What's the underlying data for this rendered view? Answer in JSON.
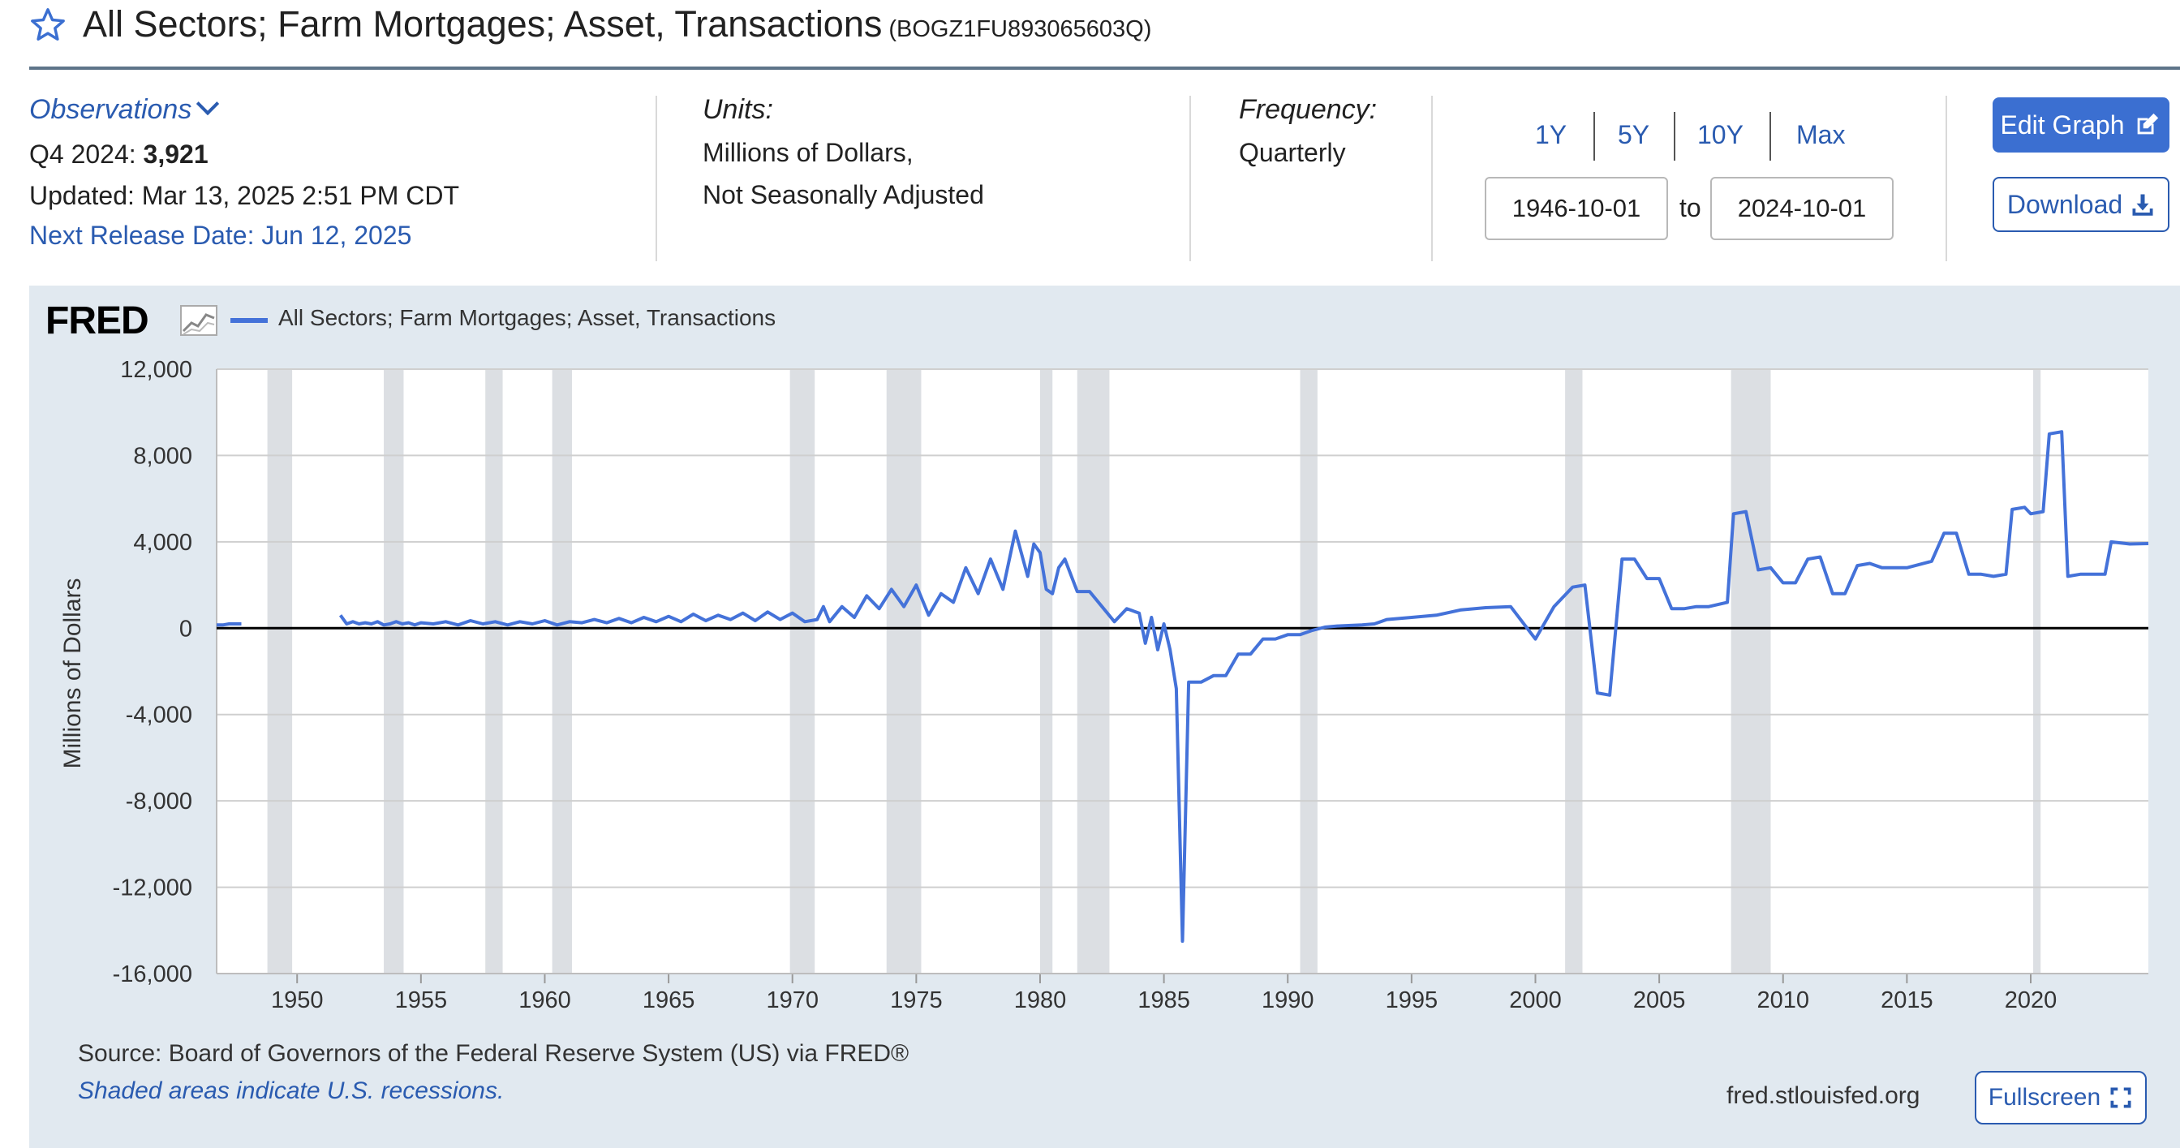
{
  "header": {
    "title": "All Sectors; Farm Mortgages; Asset, Transactions",
    "series_id": "(BOGZ1FU893065603Q)"
  },
  "info": {
    "observations_label": "Observations",
    "obs_period": "Q4 2024:",
    "obs_value": "3,921",
    "updated": "Updated: Mar 13, 2025 2:51 PM CDT",
    "next_release": "Next Release Date: Jun 12, 2025",
    "units_label": "Units:",
    "units_line1": "Millions of Dollars,",
    "units_line2": "Not Seasonally Adjusted",
    "frequency_label": "Frequency:",
    "frequency_value": "Quarterly"
  },
  "range": {
    "buttons": [
      "1Y",
      "5Y",
      "10Y",
      "Max"
    ],
    "start_date": "1946-10-01",
    "to_label": "to",
    "end_date": "2024-10-01"
  },
  "actions": {
    "edit_graph": "Edit Graph",
    "download": "Download"
  },
  "chart_meta": {
    "logo": "FRED",
    "source": "Source: Board of Governors of the Federal Reserve System (US) via FRED®",
    "recession_note": "Shaded areas indicate U.S. recessions.",
    "site": "fred.stlouisfed.org",
    "fullscreen": "Fullscreen"
  },
  "colors": {
    "series": "#4472d9",
    "recession": "#dcdfe3",
    "panel": "#e1e9f0",
    "accent": "#3b6fd1"
  },
  "icons": [
    "star-icon",
    "chevron-down-icon",
    "edit-icon",
    "download-icon",
    "fullscreen-icon",
    "fred-chart-icon"
  ],
  "chart_data": {
    "type": "line",
    "title": "",
    "xlabel": "",
    "ylabel": "Millions of Dollars",
    "xlim": [
      1946.75,
      2024.75
    ],
    "ylim": [
      -16000,
      12000
    ],
    "x_ticks": [
      1950,
      1955,
      1960,
      1965,
      1970,
      1975,
      1980,
      1985,
      1990,
      1995,
      2000,
      2005,
      2010,
      2015,
      2020
    ],
    "x_tick_labels": [
      "1950",
      "1955",
      "1960",
      "1965",
      "1970",
      "1975",
      "1980",
      "1985",
      "1990",
      "1995",
      "2000",
      "2005",
      "2010",
      "2015",
      "2020"
    ],
    "y_ticks": [
      -16000,
      -12000,
      -8000,
      -4000,
      0,
      4000,
      8000,
      12000
    ],
    "y_tick_labels": [
      "-16,000",
      "-12,000",
      "-8,000",
      "-4,000",
      "0",
      "4,000",
      "8,000",
      "12,000"
    ],
    "grid": true,
    "legend": "top-left",
    "recessions": [
      [
        1948.8,
        1949.8
      ],
      [
        1953.5,
        1954.3
      ],
      [
        1957.6,
        1958.3
      ],
      [
        1960.3,
        1961.1
      ],
      [
        1969.9,
        1970.9
      ],
      [
        1973.8,
        1975.2
      ],
      [
        1980.0,
        1980.5
      ],
      [
        1981.5,
        1982.8
      ],
      [
        1990.5,
        1991.2
      ],
      [
        2001.2,
        2001.9
      ],
      [
        2007.9,
        2009.5
      ],
      [
        2020.1,
        2020.4
      ]
    ],
    "series": [
      {
        "name": "All Sectors; Farm Mortgages; Asset, Transactions",
        "segments": [
          [
            [
              1946.75,
              150
            ],
            [
              1947.0,
              150
            ],
            [
              1947.25,
              200
            ],
            [
              1947.5,
              200
            ],
            [
              1947.75,
              200
            ]
          ],
          [
            [
              1951.75,
              600
            ],
            [
              1952.0,
              200
            ],
            [
              1952.25,
              300
            ],
            [
              1952.5,
              200
            ],
            [
              1952.75,
              250
            ],
            [
              1953.0,
              200
            ],
            [
              1953.25,
              300
            ],
            [
              1953.5,
              150
            ],
            [
              1953.75,
              200
            ],
            [
              1954.0,
              300
            ],
            [
              1954.25,
              200
            ],
            [
              1954.5,
              250
            ],
            [
              1954.75,
              150
            ],
            [
              1955.0,
              250
            ],
            [
              1955.5,
              200
            ],
            [
              1956.0,
              300
            ],
            [
              1956.5,
              150
            ],
            [
              1957.0,
              350
            ],
            [
              1957.5,
              200
            ],
            [
              1958.0,
              300
            ],
            [
              1958.5,
              150
            ],
            [
              1959.0,
              300
            ],
            [
              1959.5,
              200
            ],
            [
              1960.0,
              350
            ],
            [
              1960.5,
              150
            ],
            [
              1961.0,
              300
            ],
            [
              1961.5,
              250
            ],
            [
              1962.0,
              400
            ],
            [
              1962.5,
              250
            ],
            [
              1963.0,
              450
            ],
            [
              1963.5,
              250
            ],
            [
              1964.0,
              500
            ],
            [
              1964.5,
              300
            ],
            [
              1965.0,
              550
            ],
            [
              1965.5,
              300
            ],
            [
              1966.0,
              650
            ],
            [
              1966.5,
              350
            ],
            [
              1967.0,
              600
            ],
            [
              1967.5,
              400
            ],
            [
              1968.0,
              700
            ],
            [
              1968.5,
              350
            ],
            [
              1969.0,
              750
            ],
            [
              1969.5,
              400
            ],
            [
              1970.0,
              700
            ],
            [
              1970.5,
              300
            ],
            [
              1971.0,
              400
            ],
            [
              1971.25,
              1000
            ],
            [
              1971.5,
              300
            ],
            [
              1972.0,
              1000
            ],
            [
              1972.5,
              500
            ],
            [
              1973.0,
              1500
            ],
            [
              1973.5,
              900
            ],
            [
              1974.0,
              1800
            ],
            [
              1974.5,
              1000
            ],
            [
              1975.0,
              2000
            ],
            [
              1975.5,
              600
            ],
            [
              1976.0,
              1600
            ],
            [
              1976.5,
              1200
            ],
            [
              1977.0,
              2800
            ],
            [
              1977.5,
              1600
            ],
            [
              1978.0,
              3200
            ],
            [
              1978.5,
              1800
            ],
            [
              1979.0,
              4500
            ],
            [
              1979.5,
              2400
            ],
            [
              1979.75,
              3900
            ],
            [
              1980.0,
              3500
            ],
            [
              1980.25,
              1800
            ],
            [
              1980.5,
              1600
            ],
            [
              1980.75,
              2800
            ],
            [
              1981.0,
              3200
            ],
            [
              1981.5,
              1700
            ],
            [
              1982.0,
              1700
            ],
            [
              1982.5,
              1000
            ],
            [
              1983.0,
              300
            ],
            [
              1983.5,
              900
            ],
            [
              1984.0,
              700
            ],
            [
              1984.25,
              -700
            ],
            [
              1984.5,
              500
            ],
            [
              1984.75,
              -1000
            ],
            [
              1985.0,
              200
            ],
            [
              1985.25,
              -1000
            ],
            [
              1985.5,
              -2800
            ],
            [
              1985.75,
              -14500
            ],
            [
              1986.0,
              -2500
            ],
            [
              1986.5,
              -2500
            ],
            [
              1987.0,
              -2200
            ],
            [
              1987.5,
              -2200
            ],
            [
              1988.0,
              -1200
            ],
            [
              1988.5,
              -1200
            ],
            [
              1989.0,
              -500
            ],
            [
              1989.5,
              -500
            ],
            [
              1990.0,
              -300
            ],
            [
              1990.5,
              -300
            ],
            [
              1991.0,
              -100
            ],
            [
              1991.5,
              50
            ],
            [
              1992.0,
              100
            ],
            [
              1993.0,
              150
            ],
            [
              1993.5,
              200
            ],
            [
              1994.0,
              400
            ],
            [
              1995.0,
              500
            ],
            [
              1996.0,
              600
            ],
            [
              1997.0,
              850
            ],
            [
              1998.0,
              950
            ],
            [
              1999.0,
              1000
            ],
            [
              2000.0,
              -500
            ],
            [
              2000.75,
              1000
            ],
            [
              2001.5,
              1900
            ],
            [
              2002.0,
              2000
            ],
            [
              2002.5,
              -3000
            ],
            [
              2003.0,
              -3100
            ],
            [
              2003.5,
              3200
            ],
            [
              2004.0,
              3200
            ],
            [
              2004.5,
              2300
            ],
            [
              2005.0,
              2300
            ],
            [
              2005.5,
              900
            ],
            [
              2006.0,
              900
            ],
            [
              2006.5,
              1000
            ],
            [
              2007.0,
              1000
            ],
            [
              2007.75,
              1200
            ],
            [
              2008.0,
              5300
            ],
            [
              2008.5,
              5400
            ],
            [
              2009.0,
              2700
            ],
            [
              2009.5,
              2800
            ],
            [
              2010.0,
              2100
            ],
            [
              2010.5,
              2100
            ],
            [
              2011.0,
              3200
            ],
            [
              2011.5,
              3300
            ],
            [
              2012.0,
              1600
            ],
            [
              2012.5,
              1600
            ],
            [
              2013.0,
              2900
            ],
            [
              2013.5,
              3000
            ],
            [
              2014.0,
              2800
            ],
            [
              2015.0,
              2800
            ],
            [
              2016.0,
              3100
            ],
            [
              2016.5,
              4400
            ],
            [
              2017.0,
              4400
            ],
            [
              2017.5,
              2500
            ],
            [
              2018.0,
              2500
            ],
            [
              2018.5,
              2400
            ],
            [
              2019.0,
              2500
            ],
            [
              2019.25,
              5500
            ],
            [
              2019.75,
              5600
            ],
            [
              2020.0,
              5300
            ],
            [
              2020.5,
              5400
            ],
            [
              2020.75,
              9000
            ],
            [
              2021.25,
              9100
            ],
            [
              2021.5,
              2400
            ],
            [
              2022.0,
              2500
            ],
            [
              2022.5,
              2500
            ],
            [
              2023.0,
              2500
            ],
            [
              2023.25,
              4000
            ],
            [
              2024.0,
              3900
            ],
            [
              2024.75,
              3921
            ]
          ]
        ]
      }
    ]
  }
}
